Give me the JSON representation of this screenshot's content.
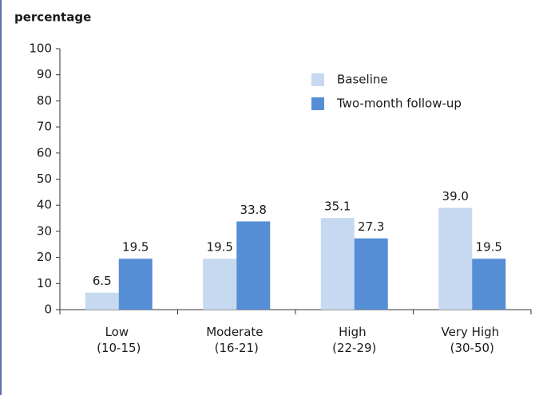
{
  "chart_data": {
    "type": "bar",
    "y_label": "percentage",
    "categories": [
      "Low (10-15)",
      "Moderate (16-21)",
      "High (22-29)",
      "Very High (30-50)"
    ],
    "series": [
      {
        "name": "Baseline",
        "color": "#c6d9f1",
        "values": [
          6.5,
          19.5,
          35.1,
          39.0
        ],
        "value_labels": [
          "6.5",
          "19.5",
          "35.1",
          "39.0"
        ]
      },
      {
        "name": "Two-month follow-up",
        "color": "#558ed5",
        "values": [
          19.5,
          33.8,
          27.3,
          19.5
        ],
        "value_labels": [
          "19.5",
          "33.8",
          "27.3",
          "19.5"
        ]
      }
    ],
    "ylim": [
      0,
      100
    ],
    "yticks": [
      0,
      10,
      20,
      30,
      40,
      50,
      60,
      70,
      80,
      90,
      100
    ],
    "legend": "upper right"
  }
}
